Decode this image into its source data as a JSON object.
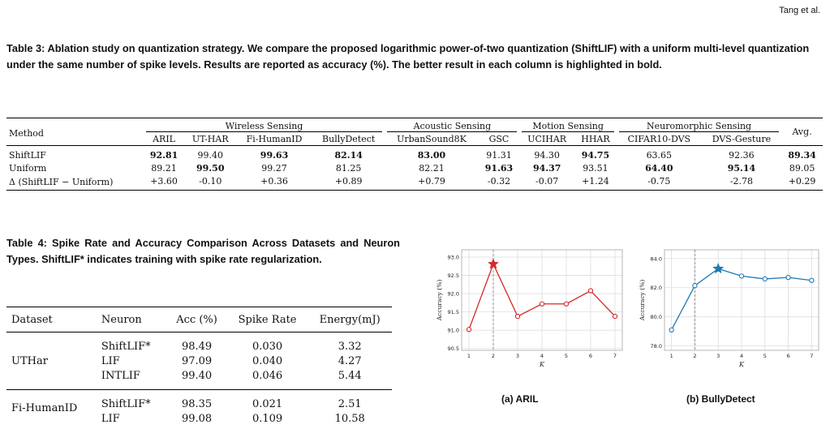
{
  "header": "Tang et al.",
  "table3": {
    "caption": "Table 3: Ablation study on quantization strategy. We compare the proposed logarithmic power-of-two quantization (ShiftLIF) with a uniform multi-level quantization under the same number of spike levels. Results are reported as accuracy (%). The better result in each column is highlighted in bold.",
    "method_header": "Method",
    "avg_header": "Avg.",
    "groups": [
      "Wireless Sensing",
      "Acoustic Sensing",
      "Motion Sensing",
      "Neuromorphic Sensing"
    ],
    "columns": [
      "ARIL",
      "UT-HAR",
      "Fi-HumanID",
      "BullyDetect",
      "UrbanSound8K",
      "GSC",
      "UCIHAR",
      "HHAR",
      "CIFAR10-DVS",
      "DVS-Gesture"
    ],
    "rows": [
      {
        "method": "ShiftLIF",
        "values": [
          "92.81",
          "99.40",
          "99.63",
          "82.14",
          "83.00",
          "91.31",
          "94.30",
          "94.75",
          "63.65",
          "92.36",
          "89.34"
        ],
        "bold": [
          true,
          false,
          true,
          true,
          true,
          false,
          false,
          true,
          false,
          false,
          true
        ]
      },
      {
        "method": "Uniform",
        "values": [
          "89.21",
          "99.50",
          "99.27",
          "81.25",
          "82.21",
          "91.63",
          "94.37",
          "93.51",
          "64.40",
          "95.14",
          "89.05"
        ],
        "bold": [
          false,
          true,
          false,
          false,
          false,
          true,
          true,
          false,
          true,
          true,
          false
        ]
      },
      {
        "method": "Δ (ShiftLIF − Uniform)",
        "values": [
          "+3.60",
          "-0.10",
          "+0.36",
          "+0.89",
          "+0.79",
          "-0.32",
          "-0.07",
          "+1.24",
          "-0.75",
          "-2.78",
          "+0.29"
        ],
        "bold": [
          false,
          false,
          false,
          false,
          false,
          false,
          false,
          false,
          false,
          false,
          false
        ]
      }
    ]
  },
  "table4": {
    "caption": "Table 4: Spike Rate and Accuracy Comparison Across Datasets and Neuron Types. ShiftLIF* indicates training with spike rate regularization.",
    "headers": [
      "Dataset",
      "Neuron",
      "Acc (%)",
      "Spike Rate",
      "Energy(mJ)"
    ],
    "groups": [
      {
        "dataset": "UTHar",
        "rows": [
          [
            "ShiftLIF*",
            "98.49",
            "0.030",
            "3.32"
          ],
          [
            "LIF",
            "97.09",
            "0.040",
            "4.27"
          ],
          [
            "INTLIF",
            "99.40",
            "0.046",
            "5.44"
          ]
        ]
      },
      {
        "dataset": "Fi-HumanID",
        "rows": [
          [
            "ShiftLIF*",
            "98.35",
            "0.021",
            "2.51"
          ],
          [
            "LIF",
            "99.08",
            "0.109",
            "10.58"
          ]
        ]
      }
    ]
  },
  "chart_data": [
    {
      "type": "line",
      "subcaption": "(a) ARIL",
      "xlabel": "K",
      "ylabel": "Accuracy (%)",
      "x": [
        1,
        2,
        3,
        4,
        5,
        6,
        7
      ],
      "values": [
        91.02,
        92.81,
        91.38,
        91.72,
        91.72,
        92.08,
        91.38
      ],
      "best_index": 1,
      "xlim": [
        0.7,
        7.3
      ],
      "ylim": [
        90.45,
        93.2
      ],
      "yticks": [
        "90.5",
        "91.0",
        "91.5",
        "92.0",
        "92.5",
        "93.0"
      ],
      "ytick_values": [
        90.5,
        91.0,
        91.5,
        92.0,
        92.5,
        93.0
      ],
      "xticks": [
        "1",
        "2",
        "3",
        "4",
        "5",
        "6",
        "7"
      ],
      "dashed_x": 2,
      "color": "#d62728",
      "grid": true
    },
    {
      "type": "line",
      "subcaption": "(b) BullyDetect",
      "xlabel": "K",
      "ylabel": "Accuracy (%)",
      "x": [
        1,
        2,
        3,
        4,
        5,
        6,
        7
      ],
      "values": [
        79.1,
        82.14,
        83.3,
        82.8,
        82.6,
        82.7,
        82.5
      ],
      "best_index": 2,
      "xlim": [
        0.7,
        7.3
      ],
      "ylim": [
        77.7,
        84.6
      ],
      "yticks": [
        "78.0",
        "80.0",
        "82.0",
        "84.0"
      ],
      "ytick_values": [
        78.0,
        80.0,
        82.0,
        84.0
      ],
      "xticks": [
        "1",
        "2",
        "3",
        "4",
        "5",
        "6",
        "7"
      ],
      "dashed_x": 2,
      "color": "#1f77b4",
      "grid": true
    }
  ]
}
